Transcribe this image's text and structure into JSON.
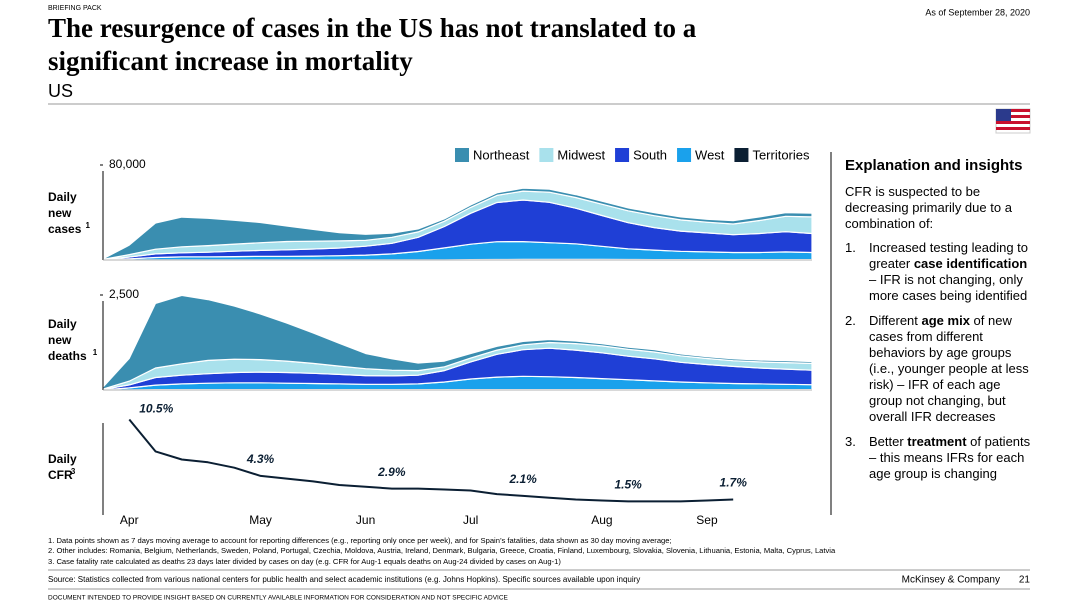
{
  "header": {
    "kicker": "BRIEFING PACK",
    "date": "As of September 28, 2020",
    "title_lines": [
      "The resurgence of cases in the US has not translated to a",
      "significant increase in mortality"
    ],
    "subtitle": "US"
  },
  "chart_data": [
    {
      "type": "stacked-area",
      "ylabel": [
        "Daily",
        "new",
        "cases"
      ],
      "ylabel_note": "1",
      "ylim": [
        0,
        80000
      ],
      "yticks": [
        {
          "value": 80000,
          "label": "80,000"
        }
      ],
      "series": [
        {
          "name": "Northeast",
          "color": "#3a8eb0",
          "values": [
            500,
            8000,
            22000,
            25000,
            23000,
            20000,
            17000,
            13000,
            10000,
            7000,
            5000,
            3500,
            2500,
            2000,
            2000,
            2200,
            2500,
            2500,
            2500,
            2500,
            2500,
            2500,
            2500,
            2500,
            2800,
            3000,
            3000,
            3200
          ]
        },
        {
          "name": "Midwest",
          "color": "#a9e1ec",
          "values": [
            200,
            2000,
            4000,
            5000,
            5500,
            6000,
            6500,
            7000,
            6500,
            6000,
            5000,
            5000,
            4500,
            4500,
            5000,
            6000,
            7500,
            8500,
            9000,
            9500,
            10000,
            10000,
            9500,
            9000,
            9000,
            11000,
            13000,
            14000
          ]
        },
        {
          "name": "South",
          "color": "#1f3fd6",
          "values": [
            200,
            1500,
            3000,
            3500,
            4000,
            4500,
            5000,
            5500,
            6000,
            6500,
            7500,
            9000,
            12000,
            18000,
            26000,
            33000,
            35000,
            34000,
            30000,
            26000,
            22000,
            19000,
            17000,
            16000,
            15000,
            16000,
            17000,
            16000
          ]
        },
        {
          "name": "West",
          "color": "#1aa1ec",
          "values": [
            100,
            1000,
            2000,
            2500,
            2500,
            2800,
            3000,
            3000,
            3200,
            3500,
            4000,
            5000,
            7000,
            10000,
            13000,
            15000,
            15000,
            14000,
            13000,
            11000,
            9000,
            8000,
            7000,
            6500,
            6000,
            6000,
            6500,
            6000
          ]
        },
        {
          "name": "Territories",
          "color": "#0b1f33",
          "values": [
            0,
            50,
            100,
            100,
            100,
            100,
            100,
            100,
            100,
            100,
            100,
            100,
            150,
            200,
            300,
            400,
            500,
            600,
            600,
            500,
            400,
            300,
            300,
            300,
            300,
            300,
            300,
            300
          ]
        }
      ]
    },
    {
      "type": "stacked-area",
      "ylabel": [
        "Daily",
        "new",
        "deaths"
      ],
      "ylabel_note": "1",
      "ylim": [
        0,
        2500
      ],
      "yticks": [
        {
          "value": 2500,
          "label": "2,500"
        }
      ],
      "series": [
        {
          "color": "#3a8eb0",
          "values": [
            50,
            600,
            1700,
            1800,
            1600,
            1400,
            1200,
            1000,
            800,
            600,
            400,
            300,
            200,
            150,
            120,
            100,
            90,
            80,
            70,
            60,
            60,
            60,
            50,
            50,
            50,
            50,
            50,
            50
          ]
        },
        {
          "color": "#a9e1ec",
          "values": [
            10,
            100,
            250,
            300,
            350,
            350,
            330,
            300,
            260,
            220,
            180,
            150,
            120,
            100,
            100,
            110,
            130,
            150,
            170,
            180,
            180,
            180,
            170,
            160,
            150,
            160,
            170,
            180
          ]
        },
        {
          "color": "#1f3fd6",
          "values": [
            10,
            80,
            200,
            230,
            250,
            270,
            280,
            280,
            270,
            250,
            230,
            220,
            230,
            300,
            450,
            600,
            700,
            750,
            720,
            680,
            620,
            580,
            520,
            480,
            450,
            420,
            400,
            380
          ]
        },
        {
          "color": "#1aa1ec",
          "values": [
            5,
            50,
            120,
            150,
            170,
            180,
            180,
            170,
            160,
            150,
            140,
            140,
            150,
            200,
            280,
            330,
            350,
            340,
            320,
            290,
            260,
            230,
            200,
            180,
            160,
            150,
            140,
            130
          ]
        },
        {
          "color": "#0b1f33",
          "values": [
            0,
            5,
            10,
            10,
            10,
            10,
            10,
            10,
            10,
            10,
            10,
            10,
            10,
            10,
            10,
            10,
            10,
            10,
            10,
            10,
            10,
            10,
            10,
            10,
            10,
            10,
            10,
            10
          ]
        }
      ]
    },
    {
      "type": "line",
      "ylabel": [
        "Daily",
        "CFR"
      ],
      "ylabel_note": "3",
      "ylim": [
        0,
        11
      ],
      "color": "#0b1f33",
      "categories": [
        null,
        "Apr",
        null,
        null,
        null,
        null,
        "May",
        null,
        null,
        null,
        "Jun",
        null,
        null,
        null,
        "Jul",
        null,
        null,
        null,
        null,
        "Aug",
        null,
        null,
        null,
        "Sep",
        null,
        null,
        null,
        null
      ],
      "values": [
        null,
        10.5,
        7,
        6.1,
        5.8,
        5.2,
        4.3,
        4,
        3.7,
        3.3,
        3.1,
        2.9,
        2.9,
        2.8,
        2.7,
        2.3,
        2.1,
        1.9,
        1.7,
        1.6,
        1.5,
        1.5,
        1.5,
        1.6,
        1.7,
        null,
        null,
        null
      ],
      "value_labels": [
        null,
        "10.5%",
        null,
        null,
        null,
        null,
        "4.3%",
        null,
        null,
        null,
        null,
        "2.9%",
        null,
        null,
        null,
        null,
        "2.1%",
        null,
        null,
        null,
        "1.5%",
        null,
        null,
        null,
        "1.7%",
        null,
        null,
        null
      ]
    }
  ],
  "panel": {
    "title": "Explanation and insights",
    "intro": "CFR is suspected to be decreasing primarily due to a combination of:",
    "items": [
      {
        "number": "1.",
        "parts": [
          {
            "text": "Increased testing leading to greater "
          },
          {
            "text": "case identification",
            "bold": true
          },
          {
            "text": " – IFR is not changing, only more cases being identified"
          }
        ]
      },
      {
        "number": "2.",
        "parts": [
          {
            "text": "Different "
          },
          {
            "text": "age mix",
            "bold": true
          },
          {
            "text": " of new cases from different behaviors by age groups (i.e., younger people at less risk) – IFR of each age group not changing, but overall IFR decreases"
          }
        ]
      },
      {
        "number": "3.",
        "parts": [
          {
            "text": "Better "
          },
          {
            "text": "treatment",
            "bold": true
          },
          {
            "text": " of patients – this means IFRs for each age group is changing"
          }
        ]
      }
    ]
  },
  "footnotes": [
    "1. Data points shown as 7 days moving average to account for reporting differences (e.g., reporting only once per week), and for Spain’s fatalities, data shown as 30 day moving average;",
    "2. Other includes: Romania, Belgium, Netherlands, Sweden, Poland, Portugal, Czechia, Moldova, Austria, Ireland, Denmark, Bulgaria, Greece, Croatia, Finland, Luxembourg, Slovakia, Slovenia, Lithuania, Estonia, Malta, Cyprus, Latvia",
    "3. Case fatality rate calculated as deaths 23 days later divided by  cases on day (e.g. CFR for Aug-1 equals deaths on Aug-24 divided by cases on Aug-1)"
  ],
  "footer": {
    "source": "Source: Statistics collected from various national centers for public health and select academic institutions (e.g. Johns Hopkins). Specific sources available upon inquiry",
    "company": "McKinsey & Company",
    "page": 21,
    "disclaimer": "DOCUMENT INTENDED TO PROVIDE INSIGHT BASED ON CURRENTLY AVAILABLE INFORMATION FOR CONSIDERATION AND NOT SPECIFIC ADVICE"
  }
}
